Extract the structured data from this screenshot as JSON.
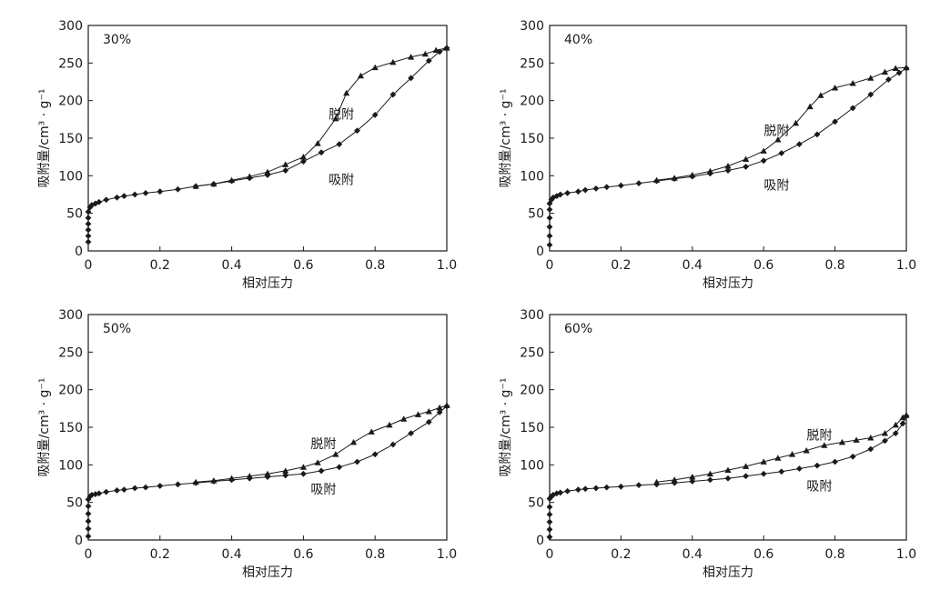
{
  "chart_data": [
    {
      "type": "line",
      "panel_label": "30%",
      "xlabel": "相对压力",
      "ylabel": "吸附量/cm³ · g⁻¹",
      "xlim": [
        0,
        1.0
      ],
      "ylim": [
        0,
        300
      ],
      "xticks": [
        0,
        0.2,
        0.4,
        0.6,
        0.8,
        1.0
      ],
      "xtick_labels": [
        "0",
        "0.2",
        "0.4",
        "0.6",
        "0.8",
        "1.0"
      ],
      "yticks": [
        0,
        50,
        100,
        150,
        200,
        250,
        300
      ],
      "ytick_labels": [
        "0",
        "50",
        "100",
        "150",
        "200",
        "250",
        "300"
      ],
      "series": [
        {
          "name": "吸附",
          "marker": "diamond",
          "x": [
            0,
            0,
            0,
            0,
            0,
            0,
            0.005,
            0.01,
            0.02,
            0.03,
            0.05,
            0.08,
            0.1,
            0.13,
            0.16,
            0.2,
            0.25,
            0.3,
            0.35,
            0.4,
            0.45,
            0.5,
            0.55,
            0.6,
            0.65,
            0.7,
            0.75,
            0.8,
            0.85,
            0.9,
            0.95,
            0.98,
            1.0
          ],
          "y": [
            12,
            20,
            28,
            36,
            44,
            52,
            58,
            61,
            63,
            65,
            68,
            71,
            73,
            75,
            77,
            79,
            82,
            86,
            89,
            93,
            97,
            101,
            107,
            119,
            131,
            142,
            160,
            181,
            208,
            230,
            253,
            265,
            270
          ]
        },
        {
          "name": "脱附",
          "marker": "triangle",
          "x": [
            1.0,
            0.97,
            0.94,
            0.9,
            0.85,
            0.8,
            0.76,
            0.72,
            0.69,
            0.64,
            0.6,
            0.55,
            0.5,
            0.45,
            0.4,
            0.35,
            0.3
          ],
          "y": [
            270,
            267,
            262,
            258,
            251,
            244,
            233,
            210,
            176,
            143,
            125,
            115,
            105,
            99,
            94,
            89,
            86
          ]
        }
      ],
      "annotations": [
        {
          "text": "脱附",
          "x": 0.65,
          "y": 182
        },
        {
          "text": "吸附",
          "x": 0.65,
          "y": 95
        }
      ]
    },
    {
      "type": "line",
      "panel_label": "40%",
      "xlabel": "相对压力",
      "ylabel": "吸附量/cm³ · g⁻¹",
      "xlim": [
        0,
        1.0
      ],
      "ylim": [
        0,
        300
      ],
      "xticks": [
        0,
        0.2,
        0.4,
        0.6,
        0.8,
        1.0
      ],
      "xtick_labels": [
        "0",
        "0.2",
        "0.4",
        "0.6",
        "0.8",
        "1.0"
      ],
      "yticks": [
        0,
        50,
        100,
        150,
        200,
        250,
        300
      ],
      "ytick_labels": [
        "0",
        "50",
        "100",
        "150",
        "200",
        "250",
        "300"
      ],
      "series": [
        {
          "name": "吸附",
          "marker": "diamond",
          "x": [
            0,
            0,
            0,
            0,
            0,
            0,
            0.005,
            0.01,
            0.02,
            0.03,
            0.05,
            0.08,
            0.1,
            0.13,
            0.16,
            0.2,
            0.25,
            0.3,
            0.35,
            0.4,
            0.45,
            0.5,
            0.55,
            0.6,
            0.65,
            0.7,
            0.75,
            0.8,
            0.85,
            0.9,
            0.95,
            0.98,
            1.0
          ],
          "y": [
            8,
            20,
            32,
            44,
            55,
            63,
            68,
            71,
            73,
            75,
            77,
            79,
            81,
            83,
            85,
            87,
            90,
            93,
            96,
            99,
            103,
            107,
            112,
            120,
            130,
            142,
            155,
            172,
            190,
            208,
            228,
            237,
            243
          ]
        },
        {
          "name": "脱附",
          "marker": "triangle",
          "x": [
            1.0,
            0.97,
            0.94,
            0.9,
            0.85,
            0.8,
            0.76,
            0.73,
            0.69,
            0.64,
            0.6,
            0.55,
            0.5,
            0.45,
            0.4,
            0.35,
            0.3
          ],
          "y": [
            244,
            243,
            238,
            230,
            223,
            217,
            207,
            192,
            170,
            148,
            133,
            122,
            113,
            106,
            101,
            97,
            94
          ]
        }
      ],
      "annotations": [
        {
          "text": "脱附",
          "x": 0.58,
          "y": 160
        },
        {
          "text": "吸附",
          "x": 0.58,
          "y": 88
        }
      ]
    },
    {
      "type": "line",
      "panel_label": "50%",
      "xlabel": "相对压力",
      "ylabel": "吸附量/cm³ · g⁻¹",
      "xlim": [
        0,
        1.0
      ],
      "ylim": [
        0,
        300
      ],
      "xticks": [
        0,
        0.2,
        0.4,
        0.6,
        0.8,
        1.0
      ],
      "xtick_labels": [
        "0",
        "0.2",
        "0.4",
        "0.6",
        "0.8",
        "1.0"
      ],
      "yticks": [
        0,
        50,
        100,
        150,
        200,
        250,
        300
      ],
      "ytick_labels": [
        "0",
        "50",
        "100",
        "150",
        "200",
        "250",
        "300"
      ],
      "series": [
        {
          "name": "吸附",
          "marker": "diamond",
          "x": [
            0,
            0,
            0,
            0,
            0,
            0,
            0.005,
            0.01,
            0.02,
            0.03,
            0.05,
            0.08,
            0.1,
            0.13,
            0.16,
            0.2,
            0.25,
            0.3,
            0.35,
            0.4,
            0.45,
            0.5,
            0.55,
            0.6,
            0.65,
            0.7,
            0.75,
            0.8,
            0.85,
            0.9,
            0.95,
            0.98,
            1.0
          ],
          "y": [
            5,
            15,
            25,
            35,
            45,
            54,
            58,
            60,
            61,
            62,
            64,
            66,
            67,
            69,
            70,
            72,
            74,
            76,
            78,
            80,
            82,
            84,
            86,
            88,
            92,
            97,
            104,
            114,
            127,
            142,
            157,
            170,
            178
          ]
        },
        {
          "name": "脱附",
          "marker": "triangle",
          "x": [
            1.0,
            0.98,
            0.95,
            0.92,
            0.88,
            0.84,
            0.79,
            0.74,
            0.69,
            0.64,
            0.6,
            0.55,
            0.5,
            0.45,
            0.4,
            0.35,
            0.3
          ],
          "y": [
            179,
            176,
            171,
            167,
            161,
            153,
            144,
            130,
            114,
            103,
            97,
            92,
            88,
            85,
            82,
            79,
            77
          ]
        }
      ],
      "annotations": [
        {
          "text": "脱附",
          "x": 0.6,
          "y": 128
        },
        {
          "text": "吸附",
          "x": 0.6,
          "y": 68
        }
      ]
    },
    {
      "type": "line",
      "panel_label": "60%",
      "xlabel": "相对压力",
      "ylabel": "吸附量/cm³ · g⁻¹",
      "xlim": [
        0,
        1.0
      ],
      "ylim": [
        0,
        300
      ],
      "xticks": [
        0,
        0.2,
        0.4,
        0.6,
        0.8,
        1.0
      ],
      "xtick_labels": [
        "0",
        "0.2",
        "0.4",
        "0.6",
        "0.8",
        "1.0"
      ],
      "yticks": [
        0,
        50,
        100,
        150,
        200,
        250,
        300
      ],
      "ytick_labels": [
        "0",
        "50",
        "100",
        "150",
        "200",
        "250",
        "300"
      ],
      "series": [
        {
          "name": "吸附",
          "marker": "diamond",
          "x": [
            0,
            0,
            0,
            0,
            0,
            0,
            0.005,
            0.01,
            0.02,
            0.03,
            0.05,
            0.08,
            0.1,
            0.13,
            0.16,
            0.2,
            0.25,
            0.3,
            0.35,
            0.4,
            0.45,
            0.5,
            0.55,
            0.6,
            0.65,
            0.7,
            0.75,
            0.8,
            0.85,
            0.9,
            0.94,
            0.97,
            0.99,
            1.0
          ],
          "y": [
            4,
            14,
            24,
            34,
            44,
            55,
            58,
            60,
            62,
            63,
            65,
            67,
            68,
            69,
            70,
            71,
            73,
            74,
            76,
            78,
            80,
            82,
            85,
            88,
            91,
            95,
            99,
            104,
            111,
            121,
            132,
            142,
            155,
            165
          ]
        },
        {
          "name": "脱附",
          "marker": "triangle",
          "x": [
            1.0,
            0.99,
            0.97,
            0.94,
            0.9,
            0.86,
            0.82,
            0.77,
            0.72,
            0.68,
            0.64,
            0.6,
            0.55,
            0.5,
            0.45,
            0.4,
            0.35,
            0.3
          ],
          "y": [
            166,
            163,
            153,
            142,
            136,
            133,
            130,
            126,
            119,
            114,
            109,
            104,
            98,
            93,
            88,
            84,
            80,
            77
          ]
        }
      ],
      "annotations": [
        {
          "text": "脱附",
          "x": 0.7,
          "y": 140
        },
        {
          "text": "吸附",
          "x": 0.7,
          "y": 72
        }
      ]
    }
  ]
}
